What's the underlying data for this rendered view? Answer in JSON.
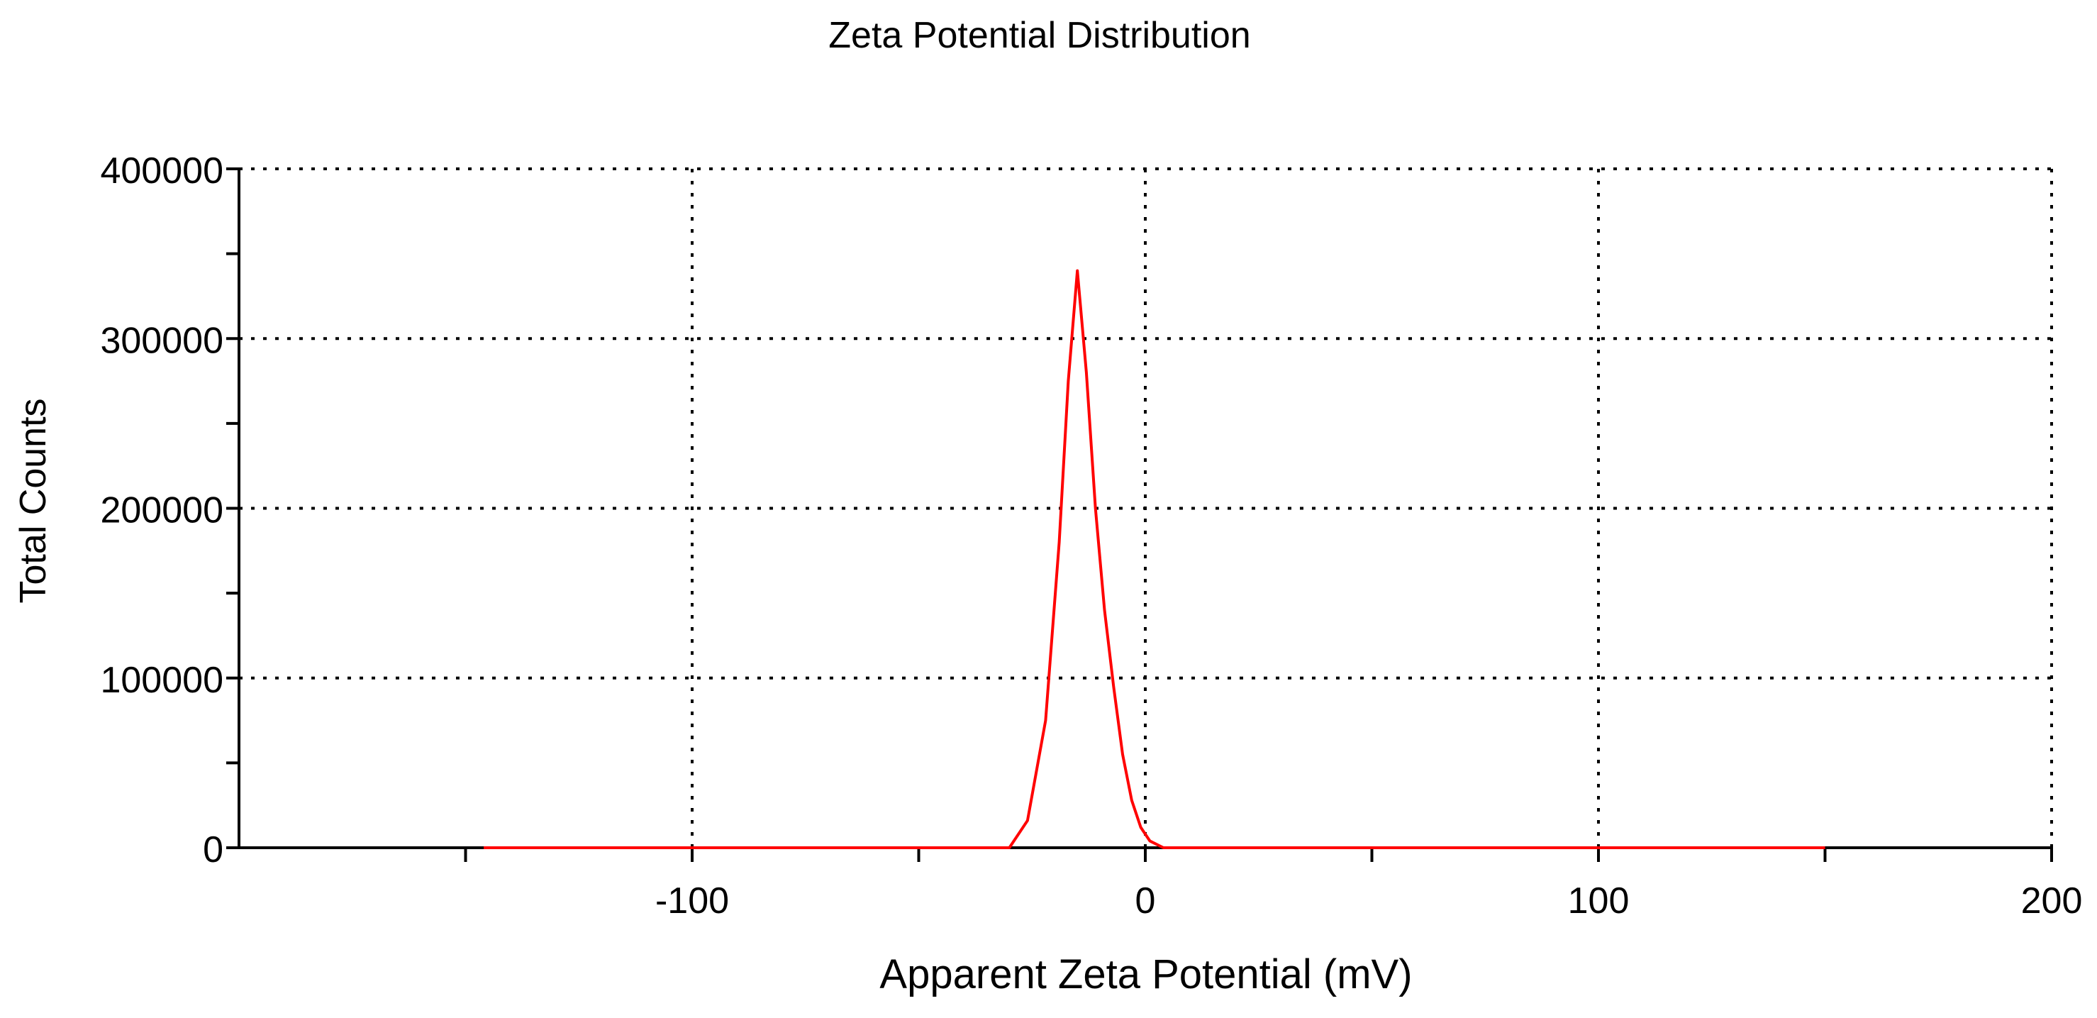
{
  "chart_data": {
    "type": "line",
    "title": "Zeta Potential Distribution",
    "xlabel": "Apparent Zeta Potential (mV)",
    "ylabel": "Total Counts",
    "xlim": [
      -200,
      200
    ],
    "ylim": [
      0,
      400000
    ],
    "x_ticks": [
      -100,
      0,
      100,
      200
    ],
    "x_tick_labels": [
      "-100",
      "0",
      "100",
      "200"
    ],
    "x_minor_ticks": [
      -150,
      -50,
      50,
      150
    ],
    "y_ticks": [
      0,
      100000,
      200000,
      300000,
      400000
    ],
    "y_tick_labels": [
      "0",
      "100000",
      "200000",
      "300000",
      "400000"
    ],
    "y_minor_ticks": [
      50000,
      150000,
      250000,
      350000
    ],
    "grid": true,
    "grid_style": "dotted",
    "series": [
      {
        "color": "#ff0000",
        "x": [
          -146,
          -30,
          -26,
          -22,
          -19,
          -17,
          -15,
          -13,
          -11,
          -9,
          -7,
          -5,
          -3,
          -1,
          1,
          4,
          150
        ],
        "values": [
          0,
          0,
          16000,
          75000,
          180000,
          275000,
          340000,
          280000,
          200000,
          140000,
          95000,
          55000,
          28000,
          12000,
          4000,
          0,
          0
        ]
      }
    ]
  }
}
